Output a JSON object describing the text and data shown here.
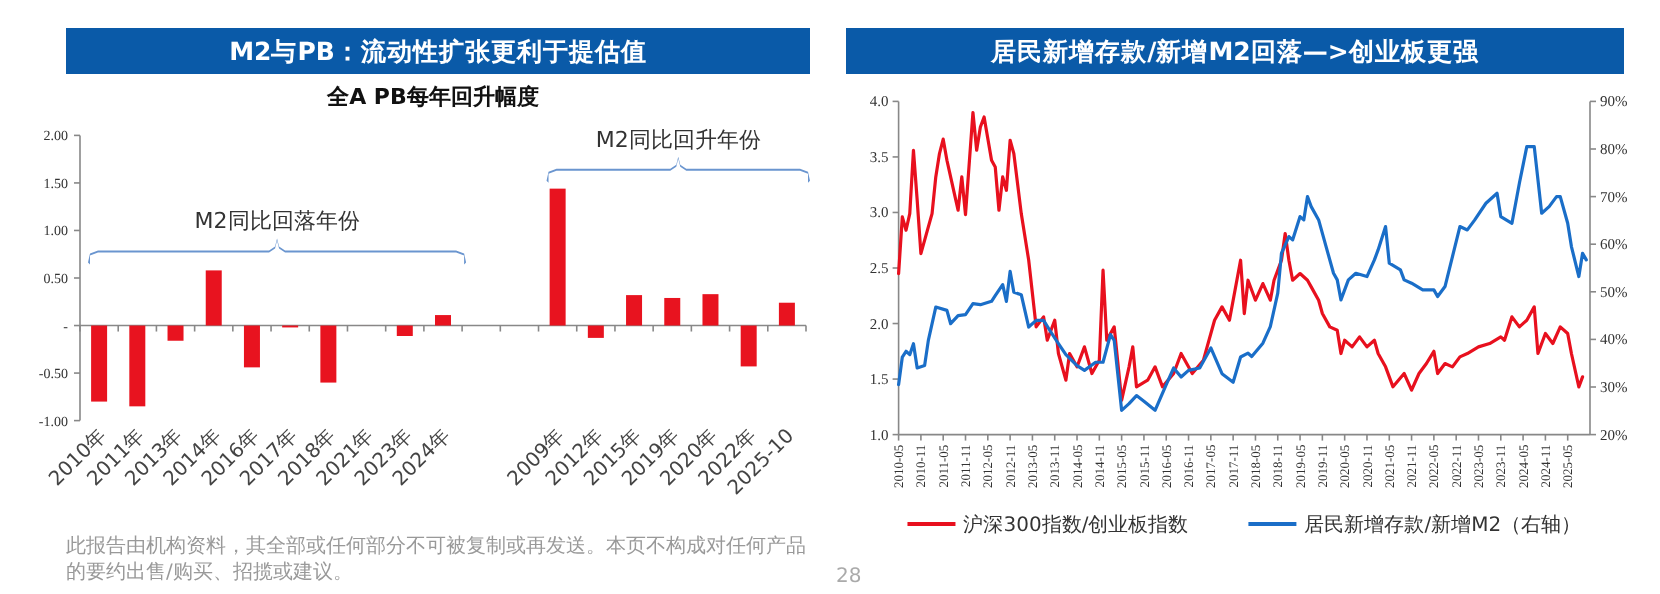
{
  "chart_data": [
    {
      "type": "bar",
      "title": "M2与PB：流动性扩张更利于提估值",
      "subtitle": "全A PB每年回升幅度",
      "categories": [
        "2010年",
        "2011年",
        "2013年",
        "2014年",
        "2016年",
        "2017年",
        "2018年",
        "2021年",
        "2023年",
        "2024年",
        null,
        null,
        "2009年",
        "2012年",
        "2015年",
        "2019年",
        "2020年",
        "2022年",
        "2025-10"
      ],
      "values": [
        -0.8,
        -0.85,
        -0.16,
        0.58,
        -0.44,
        -0.02,
        -0.6,
        0,
        -0.11,
        0.11,
        null,
        null,
        1.44,
        -0.13,
        0.32,
        0.29,
        0.33,
        -0.43,
        0.24
      ],
      "color": "#e8131f",
      "ylim": [
        -1,
        2
      ],
      "yticks": [
        {
          "value": -1,
          "label": "-1.00"
        },
        {
          "value": -0.5,
          "label": "-0.50"
        },
        {
          "value": 0,
          "label": "-"
        },
        {
          "value": 0.5,
          "label": "0.50"
        },
        {
          "value": 1,
          "label": "1.00"
        },
        {
          "value": 1.5,
          "label": "1.50"
        },
        {
          "value": 2,
          "label": "2.00"
        }
      ],
      "annotations": [
        "M2同比回落年份",
        "M2同比回升年份",
        "此报告由机构资料，其全部或任何部分不可被复制或再发送。本页不构成对任何产品的要约出售/购买、招揽或建议。",
        "28"
      ]
    },
    {
      "type": "line",
      "title": "居民新增存款/新增M2回落—>创业板更强",
      "legend": "bottom",
      "xlim": [
        "2010-05",
        "2025-11"
      ],
      "xticks": [
        "2010-05",
        "2010-11",
        "2011-05",
        "2011-11",
        "2012-05",
        "2012-11",
        "2013-05",
        "2013-11",
        "2014-05",
        "2014-11",
        "2015-05",
        "2015-11",
        "2016-05",
        "2016-11",
        "2017-05",
        "2017-11",
        "2018-05",
        "2018-11",
        "2019-05",
        "2019-11",
        "2020-05",
        "2020-11",
        "2021-05",
        "2021-11",
        "2022-05",
        "2022-11",
        "2023-05",
        "2023-11",
        "2024-05",
        "2024-11",
        "2025-05"
      ],
      "ylim": [
        1,
        4
      ],
      "yticks": [
        {
          "value": 1,
          "label": "1.0"
        },
        {
          "value": 1.5,
          "label": "1.5"
        },
        {
          "value": 2,
          "label": "2.0"
        },
        {
          "value": 2.5,
          "label": "2.5"
        },
        {
          "value": 3,
          "label": "3.0"
        },
        {
          "value": 3.5,
          "label": "3.5"
        },
        {
          "value": 4,
          "label": "4.0"
        }
      ],
      "y2lim": [
        20,
        90
      ],
      "y2ticks": [
        {
          "value": 20,
          "label": "20%"
        },
        {
          "value": 30,
          "label": "30%"
        },
        {
          "value": 40,
          "label": "40%"
        },
        {
          "value": 50,
          "label": "50%"
        },
        {
          "value": 60,
          "label": "60%"
        },
        {
          "value": 70,
          "label": "70%"
        },
        {
          "value": 80,
          "label": "80%"
        },
        {
          "value": 90,
          "label": "90%"
        }
      ],
      "series": [
        {
          "name": "沪深300指数/创业板指数",
          "color": "#e8101e",
          "x": [
            "2010-05",
            "2010-06",
            "2010-07",
            "2010-08",
            "2010-09",
            "2010-10",
            "2010-11",
            "2011-01",
            "2011-02",
            "2011-03",
            "2011-04",
            "2011-05",
            "2011-06",
            "2011-08",
            "2011-09",
            "2011-10",
            "2011-11",
            "2012-01",
            "2012-02",
            "2012-03",
            "2012-04",
            "2012-06",
            "2012-07",
            "2012-08",
            "2012-09",
            "2012-10",
            "2012-11",
            "2012-12",
            "2013-02",
            "2013-04",
            "2013-05",
            "2013-06",
            "2013-08",
            "2013-09",
            "2013-11",
            "2013-12",
            "2014-02",
            "2014-03",
            "2014-05",
            "2014-07",
            "2014-09",
            "2014-11",
            "2014-12",
            "2015-01",
            "2015-03",
            "2015-05",
            "2015-07",
            "2015-08",
            "2015-09",
            "2015-12",
            "2016-02",
            "2016-04",
            "2016-07",
            "2016-09",
            "2016-12",
            "2017-03",
            "2017-06",
            "2017-08",
            "2017-10",
            "2018-01",
            "2018-02",
            "2018-03",
            "2018-05",
            "2018-07",
            "2018-09",
            "2018-10",
            "2018-12",
            "2019-01",
            "2019-02",
            "2019-03",
            "2019-05",
            "2019-07",
            "2019-08",
            "2019-10",
            "2019-11",
            "2020-01",
            "2020-03",
            "2020-04",
            "2020-05",
            "2020-07",
            "2020-09",
            "2020-11",
            "2021-01",
            "2021-02",
            "2021-04",
            "2021-06",
            "2021-09",
            "2021-11",
            "2022-01",
            "2022-03",
            "2022-05",
            "2022-06",
            "2022-08",
            "2022-10",
            "2022-12",
            "2023-02",
            "2023-05",
            "2023-08",
            "2023-11",
            "2023-12",
            "2024-02",
            "2024-04",
            "2024-06",
            "2024-08",
            "2024-09",
            "2024-11",
            "2025-01",
            "2025-03",
            "2025-05",
            "2025-06",
            "2025-08",
            "2025-09"
          ],
          "values": [
            2.45,
            2.96,
            2.84,
            2.99,
            3.56,
            3.11,
            2.63,
            2.87,
            2.99,
            3.32,
            3.53,
            3.66,
            3.47,
            3.17,
            3.02,
            3.32,
            2.98,
            3.9,
            3.56,
            3.77,
            3.86,
            3.47,
            3.41,
            3.02,
            3.32,
            3.2,
            3.65,
            3.53,
            2.99,
            2.57,
            2.27,
            1.97,
            2.06,
            1.85,
            2.03,
            1.73,
            1.49,
            1.73,
            1.61,
            1.79,
            1.55,
            1.67,
            2.48,
            1.85,
            1.97,
            1.31,
            1.61,
            1.79,
            1.43,
            1.49,
            1.61,
            1.43,
            1.55,
            1.73,
            1.55,
            1.67,
            2.03,
            2.15,
            2.03,
            2.57,
            2.09,
            2.39,
            2.21,
            2.36,
            2.21,
            2.39,
            2.57,
            2.81,
            2.57,
            2.39,
            2.45,
            2.39,
            2.33,
            2.21,
            2.09,
            1.97,
            1.94,
            1.73,
            1.85,
            1.79,
            1.88,
            1.79,
            1.85,
            1.73,
            1.61,
            1.43,
            1.55,
            1.4,
            1.55,
            1.64,
            1.75,
            1.55,
            1.64,
            1.61,
            1.7,
            1.73,
            1.79,
            1.82,
            1.88,
            1.85,
            2.06,
            1.97,
            2.03,
            2.15,
            1.73,
            1.91,
            1.82,
            1.97,
            1.91,
            1.73,
            1.43,
            1.52
          ]
        },
        {
          "name": "居民新增存款/新增M2（右轴）",
          "color": "#1a6ec8",
          "axis": "y2",
          "x": [
            "2010-05",
            "2010-06",
            "2010-07",
            "2010-08",
            "2010-09",
            "2010-10",
            "2010-12",
            "2011-01",
            "2011-03",
            "2011-06",
            "2011-07",
            "2011-09",
            "2011-11",
            "2012-01",
            "2012-03",
            "2012-06",
            "2012-07",
            "2012-09",
            "2012-10",
            "2012-11",
            "2012-12",
            "2013-02",
            "2013-04",
            "2013-06",
            "2013-08",
            "2013-10",
            "2013-12",
            "2014-02",
            "2014-05",
            "2014-07",
            "2014-10",
            "2014-12",
            "2015-02",
            "2015-03",
            "2015-05",
            "2015-07",
            "2015-09",
            "2015-11",
            "2016-02",
            "2016-05",
            "2016-07",
            "2016-09",
            "2016-11",
            "2017-02",
            "2017-05",
            "2017-08",
            "2017-11",
            "2018-01",
            "2018-03",
            "2018-04",
            "2018-07",
            "2018-09",
            "2018-11",
            "2018-12",
            "2019-02",
            "2019-03",
            "2019-05",
            "2019-06",
            "2019-07",
            "2019-08",
            "2019-10",
            "2019-12",
            "2020-02",
            "2020-03",
            "2020-04",
            "2020-06",
            "2020-08",
            "2020-11",
            "2021-01",
            "2021-02",
            "2021-04",
            "2021-05",
            "2021-08",
            "2021-09",
            "2021-11",
            "2022-02",
            "2022-05",
            "2022-06",
            "2022-08",
            "2022-10",
            "2022-12",
            "2023-02",
            "2023-04",
            "2023-07",
            "2023-10",
            "2023-11",
            "2024-02",
            "2024-04",
            "2024-06",
            "2024-08",
            "2024-09",
            "2024-10",
            "2024-12",
            "2025-02",
            "2025-03",
            "2025-05",
            "2025-06",
            "2025-08",
            "2025-09",
            "2025-10"
          ],
          "values": [
            30.5,
            36.3,
            37.5,
            36.8,
            39.1,
            34,
            34.5,
            39.8,
            46.8,
            46.1,
            43.3,
            45,
            45.2,
            47.5,
            47.3,
            48,
            49.2,
            51.5,
            48,
            54.3,
            49.9,
            49.4,
            42.6,
            44,
            44,
            41.5,
            39.1,
            36.8,
            34.5,
            33.5,
            35.2,
            35.2,
            41,
            39.8,
            25.1,
            26.5,
            28.2,
            27,
            25.1,
            30.5,
            34,
            32.1,
            33.5,
            34,
            38.2,
            32.8,
            31,
            36.3,
            37.1,
            36.4,
            39.2,
            42.7,
            49.7,
            58.1,
            61.6,
            60.9,
            65.8,
            65.1,
            70,
            67.9,
            65.1,
            59.5,
            53.9,
            52.5,
            48.3,
            52.5,
            53.9,
            53.2,
            56.7,
            58.8,
            63.7,
            56,
            54.6,
            52.5,
            51.8,
            50.4,
            50.4,
            49,
            51.1,
            57.4,
            63.7,
            63,
            65.1,
            68.6,
            70.7,
            65.8,
            64.4,
            72.8,
            80.5,
            80.5,
            73.5,
            66.5,
            67.9,
            70,
            70,
            64.4,
            59.5,
            53.2,
            58.1,
            56.7
          ]
        }
      ]
    }
  ]
}
